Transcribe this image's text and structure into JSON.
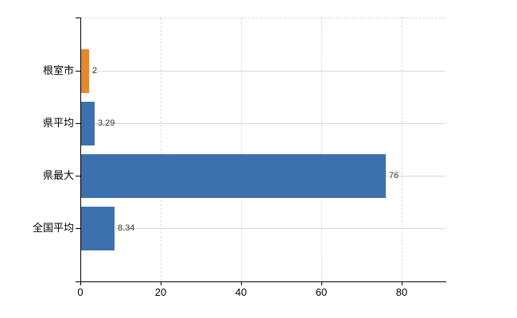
{
  "chart_data": {
    "type": "bar",
    "orientation": "horizontal",
    "title": "",
    "categories": [
      "根室市",
      "県平均",
      "県最大",
      "全国平均"
    ],
    "values": [
      2,
      3.29,
      76,
      8.34
    ],
    "value_labels": [
      "2",
      "3.29",
      "76",
      "8.34"
    ],
    "bar_colors": [
      "#e8872e",
      "#3c70ae",
      "#3c70ae",
      "#3c70ae"
    ],
    "x_ticks": [
      0,
      20,
      40,
      60,
      80
    ],
    "x_tick_labels": [
      "0",
      "20",
      "40",
      "60",
      "80"
    ],
    "xlim": [
      0,
      91
    ],
    "xlabel": "",
    "ylabel": "",
    "grid": "on",
    "legend": "none",
    "colors": {
      "bar_blue": "#3c70ae",
      "bar_orange": "#e8872e",
      "gridline_horizontal": "#d5dbd5",
      "gridline_vertical": "#d9d9d9",
      "axis": "#000000",
      "value_label_text": "#333333",
      "tick_label_text": "#000000",
      "background": "#ffffff"
    }
  }
}
